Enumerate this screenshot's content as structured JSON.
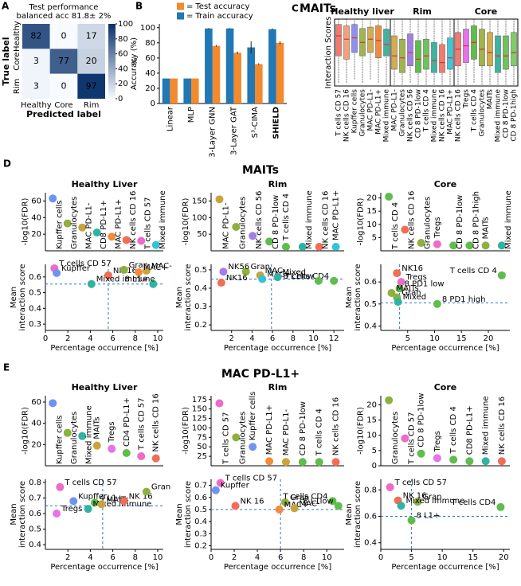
{
  "sections": [
    {
      "panel": "D",
      "title": "MAITs"
    },
    {
      "panel": "E",
      "title": "MAC PD-L1+"
    }
  ],
  "chart_data": [
    {
      "type": "heatmap",
      "panel": "A",
      "title": [
        "Test performance",
        "balanced acc 81.8± 2%"
      ],
      "categories": [
        "Healthy",
        "Core",
        "Rim"
      ],
      "values": [
        [
          82,
          0,
          17
        ],
        [
          3,
          77,
          20
        ],
        [
          3,
          0,
          97
        ]
      ],
      "xlabel": "Predicted label",
      "ylabel": "True label",
      "zlim": [
        0,
        100
      ],
      "zticks": [
        0,
        20,
        40,
        60,
        80,
        100
      ],
      "zlabel": "%",
      "cmap": [
        "#f7fbff",
        "#08306b"
      ]
    },
    {
      "type": "bar",
      "panel": "B",
      "ylabel": "Accuracy (%)",
      "categories": [
        "Linear",
        "MLP",
        "3-Layer GNN",
        "3-Layer GAT",
        "S³-CIMA",
        "SHIELD"
      ],
      "bold_category": 5,
      "legend_prefix": "=",
      "series": [
        {
          "name": "Test accuracy",
          "color": "#f28a2e",
          "values": [
            33,
            33,
            76,
            67,
            52,
            80
          ],
          "errors": [
            null,
            null,
            1,
            1.5,
            1,
            2
          ]
        },
        {
          "name": "Train accuracy",
          "color": "#2178b4",
          "values": [
            33,
            33,
            99,
            99,
            74,
            98
          ],
          "errors": [
            null,
            null,
            0.5,
            0.5,
            8,
            1
          ]
        }
      ],
      "ylim": [
        0,
        105
      ],
      "yticks": [
        0,
        20,
        40,
        60,
        80,
        100
      ]
    },
    {
      "type": "box",
      "panel": "C",
      "title": "MAITs",
      "ylabel": "Interaction Scores",
      "ylim": [
        0,
        1
      ],
      "median_color": "#e03030",
      "groups": [
        {
          "title": "Healthy liver",
          "categories": [
            "T cells CD 57",
            "NK cells CD 16",
            "Kupffer cells",
            "Granulocytes",
            "MAC PD-L1-",
            "MAC PD-L1+",
            "Mixed immune"
          ],
          "colors": [
            "#f27a6e",
            "#f4a07a",
            "#8f8ff2",
            "#9fb54a",
            "#d1ad4c",
            "#f28b3b",
            "#3fb3a2"
          ],
          "label_colors": [
            "#000",
            "#000",
            "#000",
            "#000",
            "#2b3fd6",
            "#2b3fd6",
            "#000"
          ],
          "low": [
            0.05,
            0.05,
            0.1,
            0.05,
            0.1,
            0.05,
            0.02
          ],
          "q1": [
            0.45,
            0.4,
            0.5,
            0.45,
            0.5,
            0.42,
            0.45
          ],
          "median": [
            0.75,
            0.7,
            0.72,
            0.65,
            0.7,
            0.68,
            0.62
          ],
          "q3": [
            0.92,
            0.9,
            0.92,
            0.86,
            0.88,
            0.9,
            0.85
          ],
          "high": [
            1,
            1,
            1,
            1,
            1,
            1,
            1
          ]
        },
        {
          "title": "Rim",
          "categories": [
            "MAC PD-L1-",
            "Granulocytes",
            "NK cells CD 56",
            "CD 8 PD-1low",
            "T cells CD 4",
            "Mixed immune",
            "NK cells CD 16",
            "MAC PD-L1+"
          ],
          "colors": [
            "#d1ad4c",
            "#9fb54a",
            "#a47de8",
            "#5fbd4b",
            "#6fc35c",
            "#3fb3a2",
            "#f27a6e",
            "#3fc6d6"
          ],
          "label_colors": [
            "#2b3fd6",
            "#000",
            "#000",
            "#000",
            "#000",
            "#000",
            "#000",
            "#2b3fd6"
          ],
          "low": [
            0.02,
            0.02,
            0.05,
            0.02,
            0.02,
            0.02,
            0.02,
            0.02
          ],
          "q1": [
            0.25,
            0.2,
            0.3,
            0.2,
            0.25,
            0.2,
            0.2,
            0.25
          ],
          "median": [
            0.45,
            0.42,
            0.5,
            0.4,
            0.45,
            0.38,
            0.35,
            0.42
          ],
          "q3": [
            0.75,
            0.7,
            0.78,
            0.68,
            0.7,
            0.65,
            0.62,
            0.72
          ],
          "high": [
            1,
            1,
            1,
            1,
            1,
            1,
            1,
            1
          ]
        },
        {
          "title": "Core",
          "categories": [
            "NK cells CD 16",
            "Tregs",
            "T cells CD 4",
            "Granulocytes",
            "MAITs",
            "Mixed immune",
            "CD 8 PD-1low",
            "CD 8 PD-1high"
          ],
          "colors": [
            "#f27a6e",
            "#e672ec",
            "#5fbd4b",
            "#9fb54a",
            "#d1ad4c",
            "#3fb3a2",
            "#6fc35c",
            "#7fcc6a"
          ],
          "low": [
            0.02,
            0.02,
            0.05,
            0.02,
            0.02,
            0.02,
            0.02,
            0.02
          ],
          "q1": [
            0.3,
            0.35,
            0.4,
            0.3,
            0.3,
            0.2,
            0.25,
            0.3
          ],
          "median": [
            0.55,
            0.6,
            0.65,
            0.55,
            0.5,
            0.45,
            0.45,
            0.5
          ],
          "q3": [
            0.8,
            0.85,
            0.9,
            0.85,
            0.8,
            0.75,
            0.75,
            0.8
          ],
          "high": [
            1,
            1,
            1,
            1,
            1,
            1,
            1,
            1
          ]
        }
      ]
    },
    {
      "type": "dot",
      "title": "Healthy Liver",
      "ylabel": "-log10(FDR)",
      "categories": [
        "Kupffer cells",
        "Granulocytes",
        "MAC PD-L1-",
        "CD8 PD-L1+",
        "MAC PD-L1+",
        "NK cells CD 16",
        "T cells CD 57",
        "Mixed immune"
      ],
      "values": [
        63,
        33,
        28,
        22,
        17,
        13,
        12,
        7
      ],
      "colors": [
        "#6f93f2",
        "#8db03e",
        "#c8a43c",
        "#2fb3a2",
        "#f28b3b",
        "#f36d55",
        "#f06ac8",
        "#33c3d6"
      ],
      "label_colors": [
        "#000",
        "#000",
        "#2b3fd6",
        "#000",
        "#2b3fd6",
        "#000",
        "#000",
        "#000"
      ],
      "ylim": [
        0,
        70
      ],
      "yticks": [
        20,
        40,
        60
      ]
    },
    {
      "type": "scatter",
      "xlabel": "Percentage occurrence [%]",
      "ylabel": [
        "Mean",
        "interaction score"
      ],
      "labels": [
        "T cells CD 57",
        "Kupffer",
        "NK 16",
        "Gran",
        "MAC-",
        "MAC+",
        "8 L1+",
        "Mixed immune"
      ],
      "x": [
        0.8,
        1,
        5.6,
        7,
        9,
        8.3,
        9.6,
        4.1
      ],
      "y": [
        0.655,
        0.625,
        0.61,
        0.645,
        0.64,
        0.63,
        0.555,
        0.555
      ],
      "colors": [
        "#f06ac8",
        "#6f93f2",
        "#f36d55",
        "#8db03e",
        "#c8a43c",
        "#f28b3b",
        "#2fb3a2",
        "#2fb3a2"
      ],
      "label_colors": [
        "#000",
        "#000",
        "#000",
        "#000",
        "#2b3fd6",
        "#2b3fd6",
        "#000",
        "#000"
      ],
      "xlim": [
        0,
        10.5
      ],
      "xticks": [
        0,
        2,
        4,
        6,
        8,
        10
      ],
      "ylim": [
        0.26,
        0.68
      ],
      "yticks": [
        0.3,
        0.4,
        0.5,
        0.6
      ],
      "ref_x": 5.6,
      "ref_y": 0.555,
      "ref_color": "#2b6fd6"
    },
    {
      "type": "dot",
      "title": "Rim",
      "ylabel": "-log10(FDR)",
      "categories": [
        "MAC PD-L1-",
        "Granulocytes",
        "NK cells CD 56",
        "CD 8 PD-1low",
        "T cells CD 4",
        "Mixed immune",
        "NK cells CD 16",
        "MAC PD-L1+"
      ],
      "values": [
        155,
        72,
        45,
        28,
        12,
        12,
        12,
        12
      ],
      "colors": [
        "#c8a43c",
        "#8db03e",
        "#a47de8",
        "#5fbd4b",
        "#5fbd4b",
        "#2fb3a2",
        "#f36d55",
        "#33c3d6"
      ],
      "label_colors": [
        "#2b3fd6",
        "#000",
        "#000",
        "#000",
        "#000",
        "#000",
        "#000",
        "#2b3fd6"
      ],
      "ylim": [
        0,
        175
      ],
      "yticks": [
        50,
        100,
        150
      ]
    },
    {
      "type": "scatter",
      "xlabel": "Percentage occurrence [%]",
      "ylabel": [
        "Mean",
        "interaction score"
      ],
      "labels": [
        "Gran",
        "NK56",
        "MAC-",
        "NK16",
        "MAC+",
        "Mixed",
        "T cells CD4",
        "8 L1low"
      ],
      "x": [
        3.4,
        1.2,
        4.8,
        1,
        5,
        6.5,
        12,
        10.5
      ],
      "y": [
        0.49,
        0.49,
        0.47,
        0.43,
        0.45,
        0.46,
        0.44,
        0.44
      ],
      "colors": [
        "#8db03e",
        "#a47de8",
        "#c8a43c",
        "#f36d55",
        "#33c3d6",
        "#2fb3a2",
        "#5fbd4b",
        "#5fbd4b"
      ],
      "label_colors": [
        "#000",
        "#000",
        "#2b3fd6",
        "#000",
        "#2b3fd6",
        "#000",
        "#000",
        "#000"
      ],
      "xlim": [
        0,
        13
      ],
      "xticks": [
        2,
        4,
        6,
        8,
        10,
        12
      ],
      "ylim": [
        0.17,
        0.53
      ],
      "yticks": [
        0.2,
        0.3,
        0.4,
        0.5
      ],
      "ref_x": 5.9,
      "ref_y": 0.45,
      "ref_color": "#2b6fd6"
    },
    {
      "type": "dot",
      "title": "Core",
      "ylabel": "-log10(FDR)",
      "categories": [
        "T cells CD 4",
        "NK cells CD 16",
        "Granulocytes",
        "Tregs",
        "CD 8 PD-1low",
        "CD 8 PD-1high",
        "MAITs",
        "Mixed immune"
      ],
      "values": [
        20.5,
        8,
        3,
        2.5,
        2,
        2,
        2,
        2
      ],
      "colors": [
        "#5fbd4b",
        "#f36d55",
        "#8db03e",
        "#f06ac8",
        "#5fbd4b",
        "#5fbd4b",
        "#8db03e",
        "#2fb3a2"
      ],
      "ylim": [
        0,
        22
      ],
      "yticks": [
        5,
        10,
        15,
        20
      ]
    },
    {
      "type": "scatter",
      "xlabel": "Percentage occurrence [%]",
      "ylabel": [
        "Mean",
        "interaction score"
      ],
      "labels": [
        "NK16",
        "Tregs",
        "8 PD1 low",
        "MAITs",
        "Gran",
        "Mixed",
        "T cells CD 4",
        "8 PD1 high"
      ],
      "x": [
        3,
        3.8,
        3.5,
        2,
        3,
        3.2,
        22.5,
        10.5
      ],
      "y": [
        0.64,
        0.6,
        0.57,
        0.55,
        0.53,
        0.51,
        0.63,
        0.5
      ],
      "colors": [
        "#f36d55",
        "#f06ac8",
        "#5fbd4b",
        "#8db03e",
        "#8db03e",
        "#2fb3a2",
        "#5fbd4b",
        "#5fbd4b"
      ],
      "xlim": [
        0,
        24
      ],
      "xticks": [
        5,
        10,
        15,
        20
      ],
      "ylim": [
        0.38,
        0.68
      ],
      "yticks": [
        0.4,
        0.5,
        0.6
      ],
      "ref_x": 3.5,
      "ref_y": 0.505,
      "ref_color": "#2b6fd6"
    },
    {
      "type": "dot",
      "title": "Healthy Liver",
      "ylabel": "-log10(FDR)",
      "categories": [
        "Kupffer cells",
        "Granulocytes",
        "Mixed immune",
        "MAITs",
        "Tregs",
        "CD4 PD-L1+",
        "T cells CD 57",
        "NK cells CD 16"
      ],
      "values": [
        59,
        31,
        28,
        19,
        16,
        12,
        9,
        7
      ],
      "colors": [
        "#6f93f2",
        "#8db03e",
        "#2fb3a2",
        "#c8a43c",
        "#e672ec",
        "#5fbd4b",
        "#f06ac8",
        "#f36d55"
      ],
      "ylim": [
        0,
        66
      ],
      "yticks": [
        20,
        40,
        60
      ]
    },
    {
      "type": "scatter",
      "xlabel": "Percentage occurrence [%]",
      "ylabel": [
        "Mean",
        "interaction score"
      ],
      "labels": [
        "T cells CD 57",
        "Kupffer",
        "4 L1+",
        "Mixed immune",
        "MAITs",
        "NK 16",
        "Gran",
        "Tregs"
      ],
      "x": [
        1.3,
        2.5,
        4.4,
        3.8,
        5,
        7,
        9,
        1
      ],
      "y": [
        0.77,
        0.68,
        0.67,
        0.63,
        0.66,
        0.68,
        0.74,
        0.6
      ],
      "colors": [
        "#f06ac8",
        "#6f93f2",
        "#5fbd4b",
        "#2fb3a2",
        "#c8a43c",
        "#f36d55",
        "#8db03e",
        "#e672ec"
      ],
      "label_colors": [
        "#000",
        "#000",
        "#000",
        "#000",
        "#2b3fd6",
        "#000",
        "#000",
        "#000"
      ],
      "xlim": [
        0,
        10.5
      ],
      "xticks": [
        2,
        4,
        6,
        8,
        10
      ],
      "ylim": [
        0.37,
        0.82
      ],
      "yticks": [
        0.4,
        0.5,
        0.6,
        0.7,
        0.8
      ],
      "ref_x": 5.1,
      "ref_y": 0.65,
      "ref_color": "#2b6fd6"
    },
    {
      "type": "dot",
      "title": "Rim",
      "ylabel": "-log10(FDR)",
      "categories": [
        "T cells CD 57",
        "Granulocytes",
        "Kupffer cells",
        "MAC PD-L1+",
        "MAC PD-L1-",
        "CD 8 PD-1low",
        "T cells CD 4",
        "NK cells CD 16"
      ],
      "values": [
        165,
        75,
        50,
        12,
        10,
        10,
        10,
        10
      ],
      "colors": [
        "#f06ac8",
        "#8db03e",
        "#6f93f2",
        "#f28b3b",
        "#c8a43c",
        "#5fbd4b",
        "#5fbd4b",
        "#f36d55"
      ],
      "ylim": [
        0,
        185
      ],
      "yticks": [
        25,
        50,
        75,
        100,
        125,
        150,
        175
      ]
    },
    {
      "type": "scatter",
      "xlabel": "Percentage occurrence [%]",
      "ylabel": [
        "Mean",
        "interaction score"
      ],
      "labels": [
        "T cells CD 57",
        "Kupffer",
        "NK 16",
        "Gran",
        "MAC+",
        "MAC-",
        "T cells CD4",
        "8 L1low"
      ],
      "x": [
        0.8,
        0.4,
        2.1,
        6.4,
        5.9,
        7.2,
        10.5,
        11
      ],
      "y": [
        0.72,
        0.66,
        0.53,
        0.56,
        0.5,
        0.51,
        0.57,
        0.53
      ],
      "colors": [
        "#f06ac8",
        "#6f93f2",
        "#f36d55",
        "#8db03e",
        "#f28b3b",
        "#c8a43c",
        "#5fbd4b",
        "#5fbd4b"
      ],
      "xlim": [
        0,
        11.5
      ],
      "xticks": [
        0,
        2,
        4,
        6,
        8,
        10
      ],
      "ylim": [
        0.17,
        0.75
      ],
      "yticks": [
        0.2,
        0.3,
        0.4,
        0.5,
        0.6,
        0.7
      ],
      "ref_x": 6,
      "ref_y": 0.5,
      "ref_color": "#2b6fd6"
    },
    {
      "type": "dot",
      "title": "Core",
      "ylabel": "-log10(FDR)",
      "categories": [
        "Granulocytes",
        "T cells CD 57",
        "CD 8 PD-1low",
        "Tregs",
        "T cells CD 4",
        "CD8 PD-L1+",
        "Mixed immune",
        "NK cells CD 16"
      ],
      "values": [
        21.5,
        9,
        4,
        2.5,
        2,
        1.5,
        1.5,
        1.5
      ],
      "colors": [
        "#8db03e",
        "#f06ac8",
        "#5fbd4b",
        "#e672ec",
        "#5fbd4b",
        "#5fbd4b",
        "#2fb3a2",
        "#f36d55"
      ],
      "ylim": [
        0,
        23
      ],
      "yticks": [
        0,
        5,
        10,
        15,
        20
      ]
    },
    {
      "type": "scatter",
      "xlabel": "Percentage occurrence [%]",
      "ylabel": [
        "Mean",
        "interaction score"
      ],
      "labels": [
        "T cells CD 57",
        "NK 16",
        "Gran",
        "Mixed immune",
        "8 L1+",
        "T cells CD4"
      ],
      "x": [
        1.5,
        2.8,
        6,
        3.3,
        5,
        19.5
      ],
      "y": [
        0.82,
        0.72,
        0.71,
        0.68,
        0.57,
        0.67
      ],
      "colors": [
        "#f06ac8",
        "#f36d55",
        "#8db03e",
        "#2fb3a2",
        "#5fbd4b",
        "#5fbd4b"
      ],
      "xlim": [
        0,
        21
      ],
      "xticks": [
        0,
        5,
        10,
        15,
        20
      ],
      "ylim": [
        0.35,
        0.88
      ],
      "yticks": [
        0.4,
        0.6,
        0.8
      ],
      "ref_x": 5,
      "ref_y": 0.6,
      "ref_color": "#2b6fd6"
    }
  ]
}
